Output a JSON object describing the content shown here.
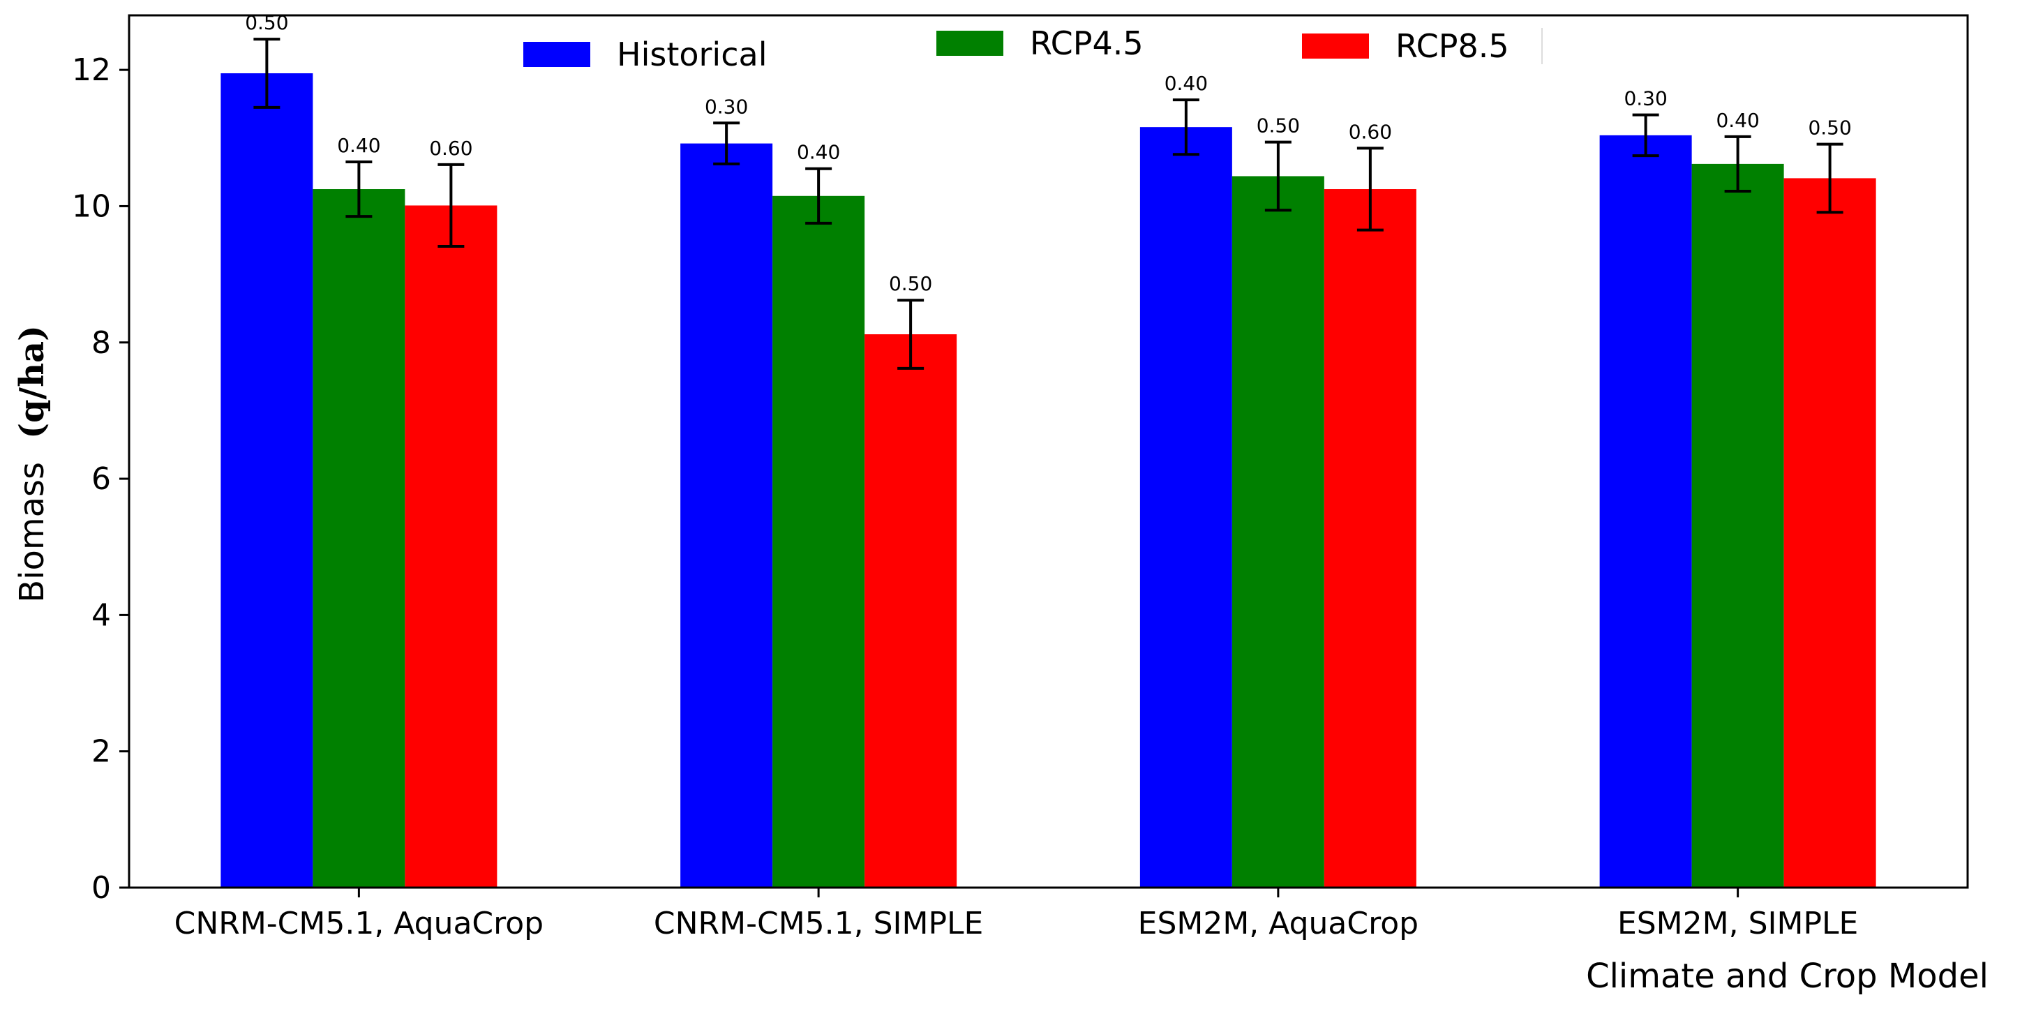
{
  "chart_data": {
    "type": "bar",
    "title": "",
    "xlabel": "Climate and Crop Model",
    "ylabel_plain": "Biomass",
    "ylabel_unit": "(q/ha)",
    "ylim": [
      0,
      12.8
    ],
    "yticks": [
      0,
      2,
      4,
      6,
      8,
      10,
      12
    ],
    "categories": [
      "CNRM-CM5.1, AquaCrop",
      "CNRM-CM5.1, SIMPLE",
      "ESM2M, AquaCrop",
      "ESM2M, SIMPLE"
    ],
    "series": [
      {
        "name": "Historical",
        "color": "#0000ff",
        "values": [
          11.95,
          10.92,
          11.16,
          11.04
        ],
        "errors": [
          0.5,
          0.3,
          0.4,
          0.3
        ],
        "error_labels": [
          "0.50",
          "0.30",
          "0.40",
          "0.30"
        ]
      },
      {
        "name": "RCP4.5",
        "color": "#008000",
        "values": [
          10.25,
          10.15,
          10.44,
          10.62
        ],
        "errors": [
          0.4,
          0.4,
          0.5,
          0.4
        ],
        "error_labels": [
          "0.40",
          "0.40",
          "0.50",
          "0.40"
        ]
      },
      {
        "name": "RCP8.5",
        "color": "#ff0000",
        "values": [
          10.01,
          8.12,
          10.25,
          10.41
        ],
        "errors": [
          0.6,
          0.5,
          0.6,
          0.5
        ],
        "error_labels": [
          "0.60",
          "0.50",
          "0.60",
          "0.50"
        ]
      }
    ],
    "legend_position": "top"
  }
}
